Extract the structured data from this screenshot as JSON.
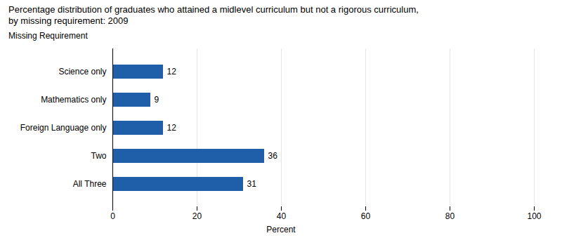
{
  "chart_data": {
    "type": "bar",
    "title": "Percentage distribution of graduates who attained a midlevel curriculum but not a rigorous curriculum,\nby missing requirement: 2009",
    "ylabel": "Missing Requirement",
    "xlabel": "Percent",
    "categories": [
      "Science only",
      "Mathematics only",
      "Foreign Language only",
      "Two",
      "All Three"
    ],
    "values": [
      12,
      9,
      12,
      36,
      31
    ],
    "color": "#1F5EA8",
    "orientation": "horizontal",
    "xlim": [
      0,
      100
    ],
    "xticks": [
      0,
      20,
      40,
      60,
      80,
      100
    ],
    "grid": true,
    "data_labels": true
  }
}
